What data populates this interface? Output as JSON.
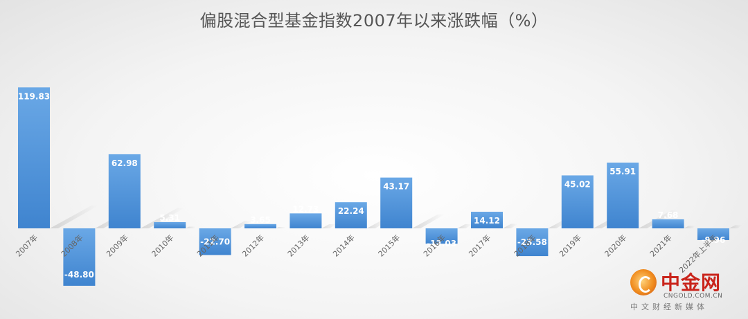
{
  "chart_data": {
    "type": "bar",
    "title": "偏股混合型基金指数2007年以来涨跌幅（%）",
    "categories": [
      "2007年",
      "2008年",
      "2009年",
      "2010年",
      "2011年",
      "2012年",
      "2013年",
      "2014年",
      "2015年",
      "2016年",
      "2017年",
      "2018年",
      "2019年",
      "2020年",
      "2021年",
      "2022年上半年"
    ],
    "values": [
      119.83,
      -48.8,
      62.98,
      5.31,
      -22.7,
      3.65,
      12.73,
      22.24,
      43.17,
      -13.03,
      14.12,
      -23.58,
      45.02,
      55.91,
      7.68,
      -9.96
    ],
    "value_labels": [
      "119.83",
      "-48.80",
      "62.98",
      "5.31",
      "-22.70",
      "3.65",
      "12.73",
      "22.24",
      "43.17",
      "-13.03",
      "14.12",
      "-23.58",
      "45.02",
      "55.91",
      "7.68",
      "-9.96"
    ],
    "ylim": [
      -55,
      125
    ],
    "grid": false,
    "legend": "none",
    "bar_color": "#4a90d9",
    "bar_color_light": "#6aa8e6"
  },
  "watermark": {
    "brand": "中金网",
    "domain": "CNGOLD.COM.CN",
    "slogan": "中文财经新媒体",
    "brand_color": "#c9241b"
  }
}
